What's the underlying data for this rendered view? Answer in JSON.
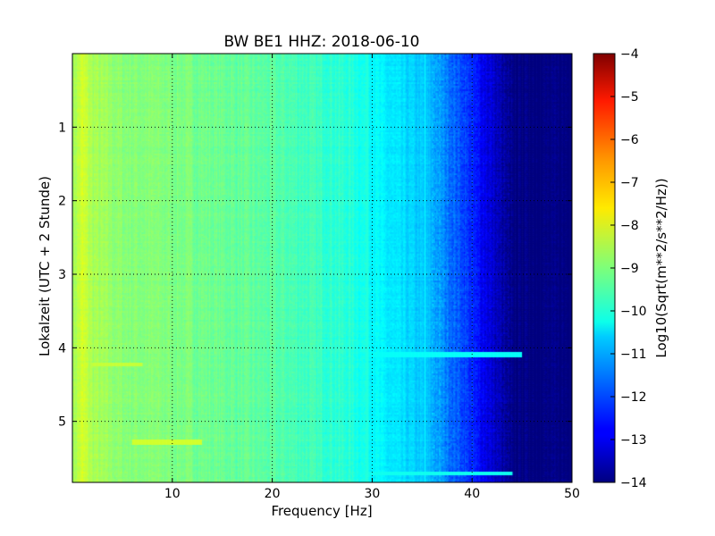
{
  "chart_data": {
    "type": "heatmap",
    "title": "BW BE1 HHZ: 2018-06-10",
    "xlabel": "Frequency [Hz]",
    "ylabel": "Lokalzeit (UTC + 2 Stunde)",
    "xlim": [
      0,
      50
    ],
    "ylim": [
      5.83,
      0
    ],
    "y_inverted": true,
    "grid": true,
    "grid_style": "dotted",
    "x_ticks": [
      10,
      20,
      30,
      40,
      50
    ],
    "x_tick_labels": [
      "10",
      "20",
      "30",
      "40",
      "50"
    ],
    "y_ticks": [
      1,
      2,
      3,
      4,
      5
    ],
    "y_tick_labels": [
      "1",
      "2",
      "3",
      "4",
      "5"
    ],
    "colormap": "jet",
    "colorbar": {
      "label": "Log10(Sqrt(m**2/s**2/Hz))",
      "min": -14,
      "max": -4,
      "ticks": [
        -4,
        -5,
        -6,
        -7,
        -8,
        -9,
        -10,
        -11,
        -12,
        -13,
        -14
      ],
      "tick_labels": [
        "−4",
        "−5",
        "−6",
        "−7",
        "−8",
        "−9",
        "−10",
        "−11",
        "−12",
        "−13",
        "−14"
      ]
    },
    "spectrum_profile": {
      "description_units": "log10 amplitude vs frequency (Hz)",
      "frequency": [
        0,
        1,
        2,
        5,
        10,
        15,
        20,
        25,
        28,
        30,
        31,
        33,
        35,
        36,
        37,
        38,
        39,
        40,
        41,
        42,
        43,
        44,
        45,
        50
      ],
      "value": [
        -8.7,
        -8.2,
        -8.6,
        -8.9,
        -9.0,
        -9.2,
        -9.4,
        -9.7,
        -9.9,
        -10.2,
        -10.4,
        -10.6,
        -10.8,
        -11.0,
        -11.3,
        -11.7,
        -12.0,
        -12.4,
        -12.8,
        -13.2,
        -13.6,
        -14.0,
        -14.0,
        -14.0
      ]
    },
    "horizontal_features": [
      {
        "time_hours": 4.09,
        "freq_range": [
          14,
          45
        ],
        "value": -10.2
      },
      {
        "time_hours": 5.71,
        "freq_range": [
          20,
          44
        ],
        "value": -10.1
      },
      {
        "time_hours": 5.28,
        "freq_range": [
          6,
          13
        ],
        "value": -8.2
      },
      {
        "time_hours": 4.22,
        "freq_range": [
          2,
          7
        ],
        "value": -8.3
      }
    ],
    "vertical_features": [
      {
        "freq_hz": 35.3,
        "time_range": [
          0,
          5.83
        ],
        "value": -10.3
      },
      {
        "freq_hz": 29.5,
        "time_range": [
          0,
          5.83
        ],
        "value": -9.9
      }
    ]
  }
}
